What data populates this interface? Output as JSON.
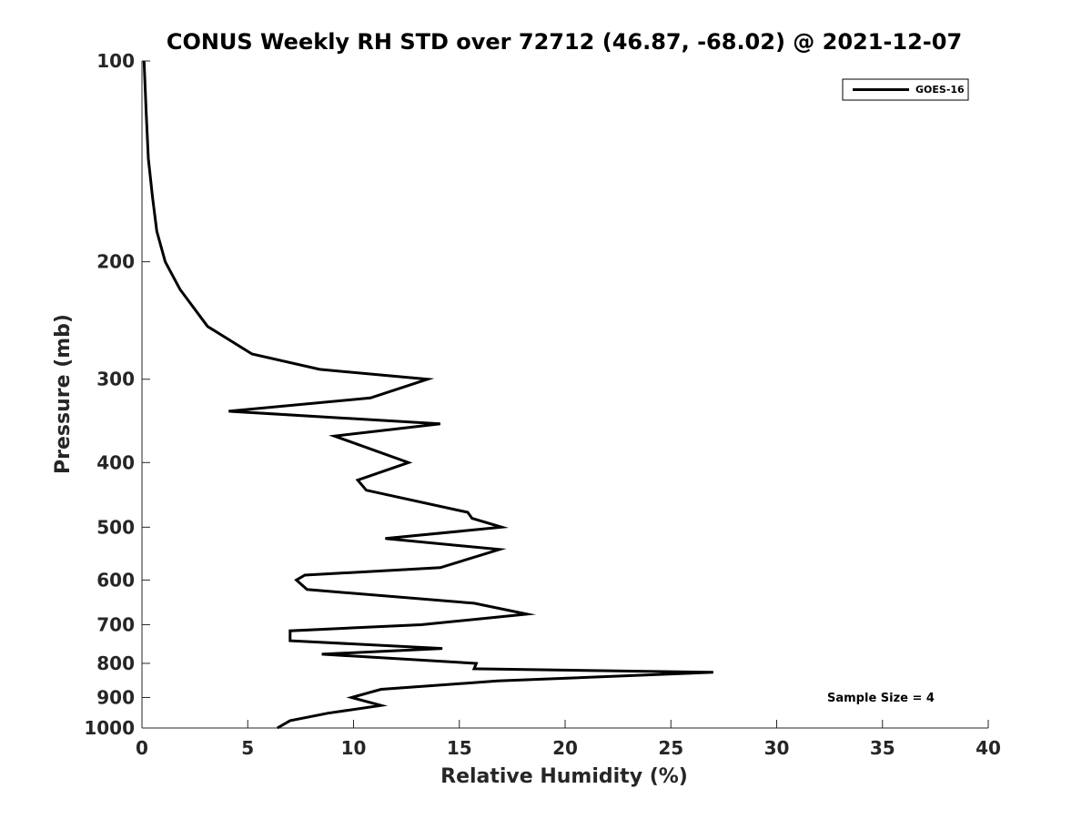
{
  "chart_data": {
    "type": "line",
    "title": "CONUS Weekly RH STD over 72712 (46.87, -68.02) @ 2021-12-07",
    "xlabel": "Relative Humidity (%)",
    "ylabel": "Pressure (mb)",
    "xlim": [
      0,
      40
    ],
    "ylim": [
      100,
      1000
    ],
    "yscale": "log",
    "y_reversed": true,
    "x_ticks": [
      "0",
      "5",
      "10",
      "15",
      "20",
      "25",
      "30",
      "35",
      "40"
    ],
    "y_ticks": [
      "100",
      "200",
      "300",
      "400",
      "500",
      "600",
      "700",
      "800",
      "900",
      "1000"
    ],
    "grid": false,
    "legend": {
      "position": "top-right",
      "entries": [
        "GOES-16"
      ]
    },
    "annotation": "Sample Size = 4",
    "series": [
      {
        "name": "GOES-16",
        "color": "#000000",
        "x": [
          0.1,
          0.2,
          0.3,
          0.5,
          0.7,
          1.1,
          1.8,
          3.1,
          5.2,
          8.4,
          13.5,
          10.8,
          4.1,
          14.1,
          9.1,
          12.6,
          10.2,
          10.6,
          15.4,
          15.6,
          17.0,
          11.5,
          16.9,
          14.1,
          7.7,
          7.3,
          7.8,
          15.7,
          18.2,
          13.2,
          7.0,
          7.0,
          14.2,
          8.5,
          15.8,
          15.7,
          27.0,
          16.8,
          11.3,
          9.9,
          11.3,
          8.8,
          7.0,
          6.4
        ],
        "y": [
          100,
          120,
          140,
          160,
          180,
          200,
          220,
          250,
          275,
          290,
          300,
          320,
          335,
          350,
          365,
          400,
          425,
          440,
          475,
          485,
          500,
          520,
          540,
          575,
          590,
          600,
          620,
          650,
          675,
          700,
          715,
          740,
          760,
          775,
          800,
          815,
          825,
          850,
          875,
          900,
          925,
          950,
          975,
          1000
        ]
      }
    ]
  }
}
